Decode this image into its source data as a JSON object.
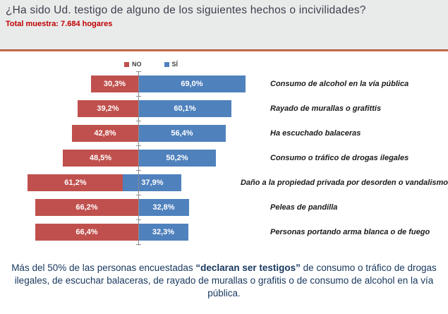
{
  "header": {
    "title": "¿Ha sido Ud. testigo de alguno de los siguientes hechos o incivilidades?",
    "subtitle": "Total muestra: 7.684 hogares"
  },
  "colors": {
    "no_bar": "#C0504D",
    "si_bar": "#4F81BD",
    "divider": "#A94628",
    "header_bg": "#E9EBEB",
    "subtitle_text": "#C00000",
    "footer_text": "#17375E"
  },
  "chart_data": {
    "type": "bar",
    "orientation": "horizontal-diverging",
    "title": "",
    "xlabel": "",
    "ylabel": "",
    "legend_position": "top",
    "axis": "center-vertical",
    "grid": false,
    "categories": [
      "Consumo de alcohol en la vía pública",
      "Rayado de murallas o grafittis",
      "Ha escuchado balaceras",
      "Consumo o tráfico de drogas ilegales",
      "Daño a la propiedad privada por desorden o vandalismo",
      "Peleas de pandilla",
      "Personas portando arma blanca o de fuego"
    ],
    "series": [
      {
        "name": "NO",
        "color": "#C0504D",
        "values": [
          30.3,
          39.2,
          42.8,
          48.5,
          61.2,
          66.2,
          66.4
        ],
        "labels": [
          "30,3%",
          "39,2%",
          "42,8%",
          "48,5%",
          "61,2%",
          "66,2%",
          "66,4%"
        ]
      },
      {
        "name": "SÍ",
        "color": "#4F81BD",
        "values": [
          69.0,
          60.1,
          56.4,
          50.2,
          37.9,
          32.8,
          32.3
        ],
        "labels": [
          "69,0%",
          "60,1%",
          "56,4%",
          "50,2%",
          "37,9%",
          "32,8%",
          "32,3%"
        ]
      }
    ]
  },
  "footer": {
    "pre": "Más del 50% de las personas encuestadas ",
    "bold": "“declaran ser testigos”",
    "post": " de consumo o tráfico de drogas ilegales, de escuchar balaceras, de rayado de murallas o grafitis o de consumo de alcohol en la vía pública."
  }
}
